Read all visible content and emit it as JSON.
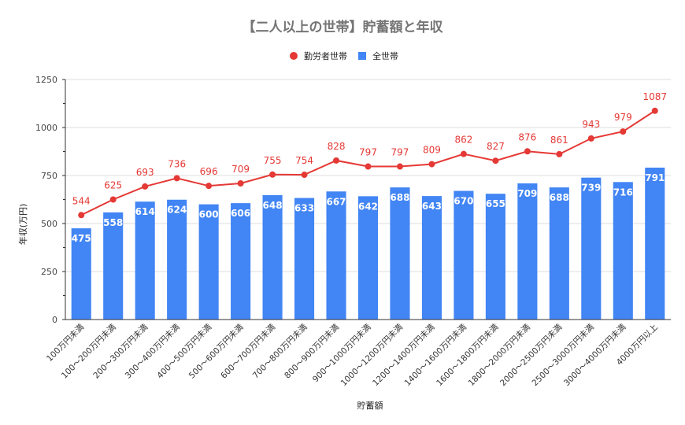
{
  "chart_data": {
    "type": "bar+line",
    "title": "【二人以上の世帯】貯蓄額と年収",
    "xlabel": "貯蓄額",
    "ylabel": "年収(万円)",
    "ylim": [
      0,
      1250
    ],
    "yticks": [
      0,
      250,
      500,
      750,
      1000,
      1250
    ],
    "grid": true,
    "legend_position": "top",
    "categories": [
      "100万円未満",
      "100～200万円未満",
      "200～300万円未満",
      "300～400万円未満",
      "400～500万円未満",
      "500～600万円未満",
      "600～700万円未満",
      "700～800万円未満",
      "800～900万円未満",
      "900～1000万円未満",
      "1000～1200万円未満",
      "1200～1400万円未満",
      "1400～1600万円未満",
      "1600～1800万円未満",
      "1800～2000万円未満",
      "2000～2500万円未満",
      "2500～3000万円未満",
      "3000～4000万円未満",
      "4000万円以上"
    ],
    "series": [
      {
        "name": "勤労者世帯",
        "type": "line",
        "color": "#e53935",
        "values": [
          544,
          625,
          693,
          736,
          696,
          709,
          755,
          754,
          828,
          797,
          797,
          809,
          862,
          827,
          876,
          861,
          943,
          979,
          1087
        ]
      },
      {
        "name": "全世帯",
        "type": "bar",
        "color": "#4285f4",
        "values": [
          475,
          558,
          614,
          624,
          600,
          606,
          648,
          633,
          667,
          642,
          688,
          643,
          670,
          655,
          709,
          688,
          739,
          716,
          791
        ]
      }
    ]
  }
}
